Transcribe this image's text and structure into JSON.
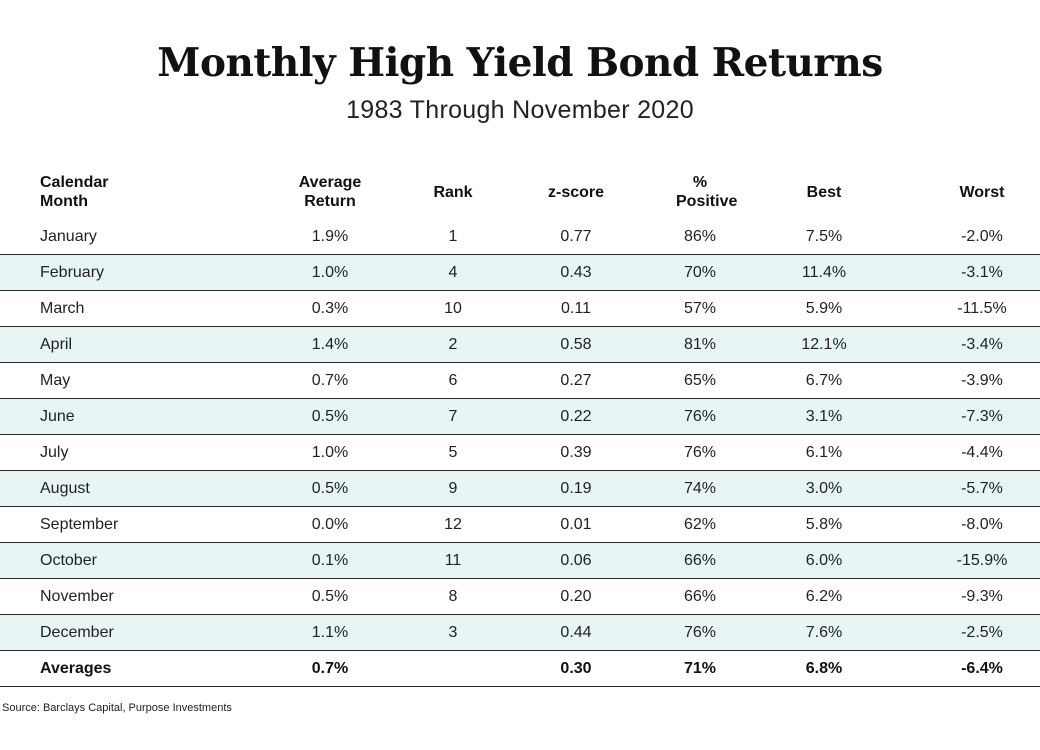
{
  "title": "Monthly High Yield Bond Returns",
  "subtitle": "1983 Through November 2020",
  "source": "Source: Barclays Capital, Purpose Investments",
  "chart_data": {
    "type": "table",
    "title": "Monthly High Yield Bond Returns",
    "subtitle": "1983 Through November 2020",
    "columns": [
      {
        "line1": "Calendar",
        "line2": "Month"
      },
      {
        "line1": "Average",
        "line2": "Return"
      },
      {
        "line1": "Rank",
        "line2": ""
      },
      {
        "line1": "z-score",
        "line2": ""
      },
      {
        "line1": "% Positive",
        "line2": ""
      },
      {
        "line1": "Best",
        "line2": ""
      },
      {
        "line1": "Worst",
        "line2": ""
      }
    ],
    "rows": [
      [
        "January",
        "1.9%",
        "1",
        "0.77",
        "86%",
        "7.5%",
        "-2.0%"
      ],
      [
        "February",
        "1.0%",
        "4",
        "0.43",
        "70%",
        "11.4%",
        "-3.1%"
      ],
      [
        "March",
        "0.3%",
        "10",
        "0.11",
        "57%",
        "5.9%",
        "-11.5%"
      ],
      [
        "April",
        "1.4%",
        "2",
        "0.58",
        "81%",
        "12.1%",
        "-3.4%"
      ],
      [
        "May",
        "0.7%",
        "6",
        "0.27",
        "65%",
        "6.7%",
        "-3.9%"
      ],
      [
        "June",
        "0.5%",
        "7",
        "0.22",
        "76%",
        "3.1%",
        "-7.3%"
      ],
      [
        "July",
        "1.0%",
        "5",
        "0.39",
        "76%",
        "6.1%",
        "-4.4%"
      ],
      [
        "August",
        "0.5%",
        "9",
        "0.19",
        "74%",
        "3.0%",
        "-5.7%"
      ],
      [
        "September",
        "0.0%",
        "12",
        "0.01",
        "62%",
        "5.8%",
        "-8.0%"
      ],
      [
        "October",
        "0.1%",
        "11",
        "0.06",
        "66%",
        "6.0%",
        "-15.9%"
      ],
      [
        "November",
        "0.5%",
        "8",
        "0.20",
        "66%",
        "6.2%",
        "-9.3%"
      ],
      [
        "December",
        "1.1%",
        "3",
        "0.44",
        "76%",
        "7.6%",
        "-2.5%"
      ]
    ],
    "averages": [
      "Averages",
      "0.7%",
      "",
      "0.30",
      "71%",
      "6.8%",
      "-6.4%"
    ]
  },
  "colors": {
    "shaded_row": "#e8f5f5",
    "rule": "#2b2b2b",
    "text": "#111111"
  }
}
